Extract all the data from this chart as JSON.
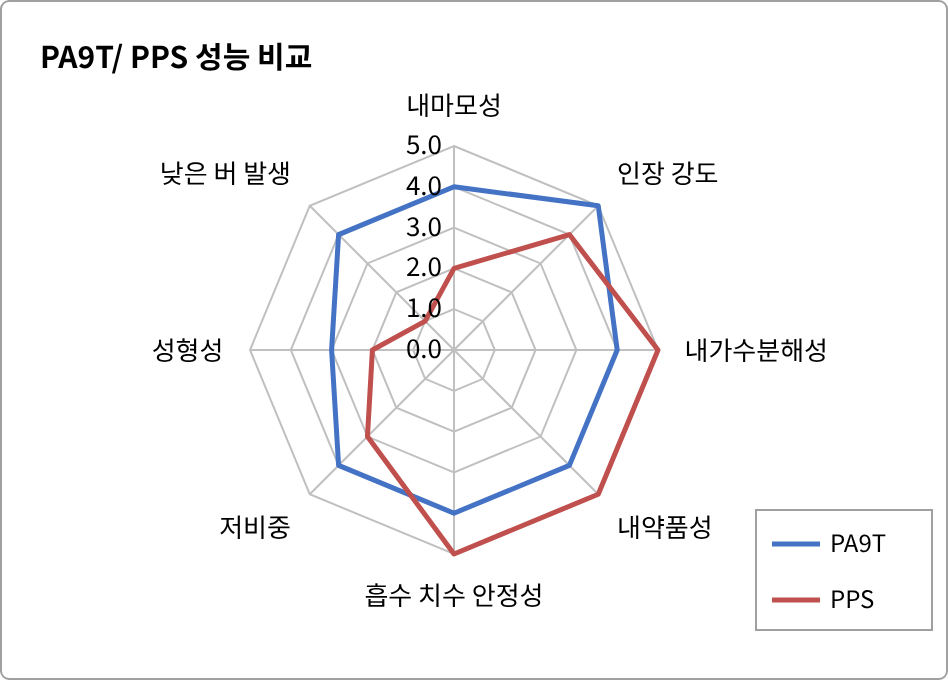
{
  "chart_data": {
    "type": "radar",
    "title": "PA9T/ PPS 성능 비교",
    "categories": [
      "내마모성",
      "인장 강도",
      "내가수분해성",
      "내약품성",
      "흡수 치수 안정성",
      "저비중",
      "성형성",
      "낮은 버 발생"
    ],
    "series": [
      {
        "name": "PA9T",
        "color": "#4472c4",
        "values": [
          4,
          5,
          4,
          4,
          4,
          4,
          3,
          4
        ]
      },
      {
        "name": "PPS",
        "color": "#c0504d",
        "values": [
          2,
          4,
          5,
          5,
          5,
          3,
          2,
          1
        ]
      }
    ],
    "ylim": [
      0,
      5
    ],
    "yticks": [
      {
        "value": 0,
        "label": "0.0"
      },
      {
        "value": 1,
        "label": "1.0"
      },
      {
        "value": 2,
        "label": "2.0"
      },
      {
        "value": 3,
        "label": "3.0"
      },
      {
        "value": 4,
        "label": "4.0"
      },
      {
        "value": 5,
        "label": "5.0"
      }
    ],
    "grid": true,
    "legend": "bottom right"
  }
}
